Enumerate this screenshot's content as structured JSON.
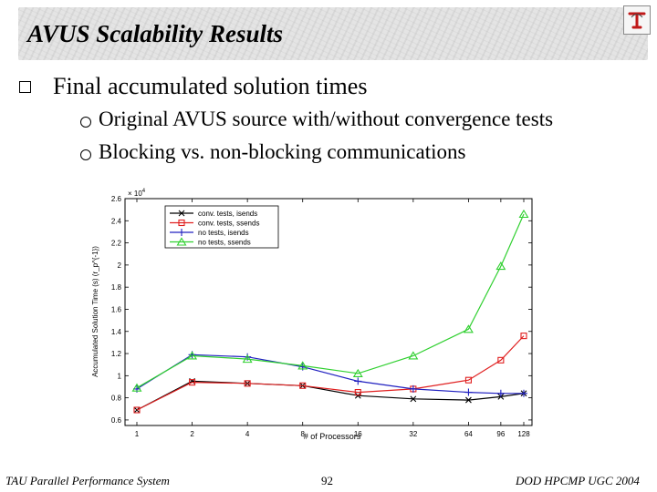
{
  "slide": {
    "title": "AVUS Scalability Results",
    "bullet": "Final accumulated solution times",
    "subbullets": [
      "Original AVUS source with/without convergence tests",
      "Blocking vs. non-blocking communications"
    ]
  },
  "footer": {
    "left": "TAU Parallel Performance System",
    "center": "92",
    "right": "DOD HPCMP UGC 2004"
  },
  "chart_data": {
    "type": "line",
    "title": "",
    "xlabel": "# of Processors",
    "ylabel": "Accumulated Solution Time (s) (r_p^{-1})",
    "y_multiplier_label": "× 10",
    "y_multiplier_exp": "4",
    "x": [
      1,
      2,
      4,
      8,
      16,
      32,
      64,
      96,
      128
    ],
    "x_tick_labels": [
      "1",
      "2",
      "4",
      "8",
      "16",
      "32",
      "64",
      "96",
      "128"
    ],
    "x_scale": "log2",
    "ylim": [
      0.55,
      2.6
    ],
    "y_ticks": [
      "0.6",
      "0.8",
      "1",
      "1.2",
      "1.4",
      "1.6",
      "1.8",
      "2",
      "2.2",
      "2.4",
      "2.6"
    ],
    "grid": false,
    "legend_position": "top-left",
    "series": [
      {
        "name": "conv. tests, isends",
        "color": "#000000",
        "marker": "x",
        "values": [
          0.69,
          0.95,
          0.93,
          0.91,
          0.82,
          0.79,
          0.78,
          0.81,
          0.84
        ]
      },
      {
        "name": "conv. tests, ssends",
        "color": "#e02020",
        "marker": "square",
        "values": [
          0.69,
          0.94,
          0.93,
          0.91,
          0.85,
          0.88,
          0.96,
          1.14,
          1.36
        ]
      },
      {
        "name": "no tests, isends",
        "color": "#2020c0",
        "marker": "plus",
        "values": [
          0.88,
          1.19,
          1.17,
          1.08,
          0.95,
          0.88,
          0.85,
          0.84,
          0.84
        ]
      },
      {
        "name": "no tests, ssends",
        "color": "#30d030",
        "marker": "triangle",
        "values": [
          0.89,
          1.18,
          1.15,
          1.09,
          1.02,
          1.18,
          1.42,
          1.99,
          2.46
        ]
      }
    ]
  },
  "icons": {
    "title_logo": "tau-logo-icon",
    "bullet1": "square-bullet-icon",
    "bullet2": "circle-bullet-icon"
  }
}
